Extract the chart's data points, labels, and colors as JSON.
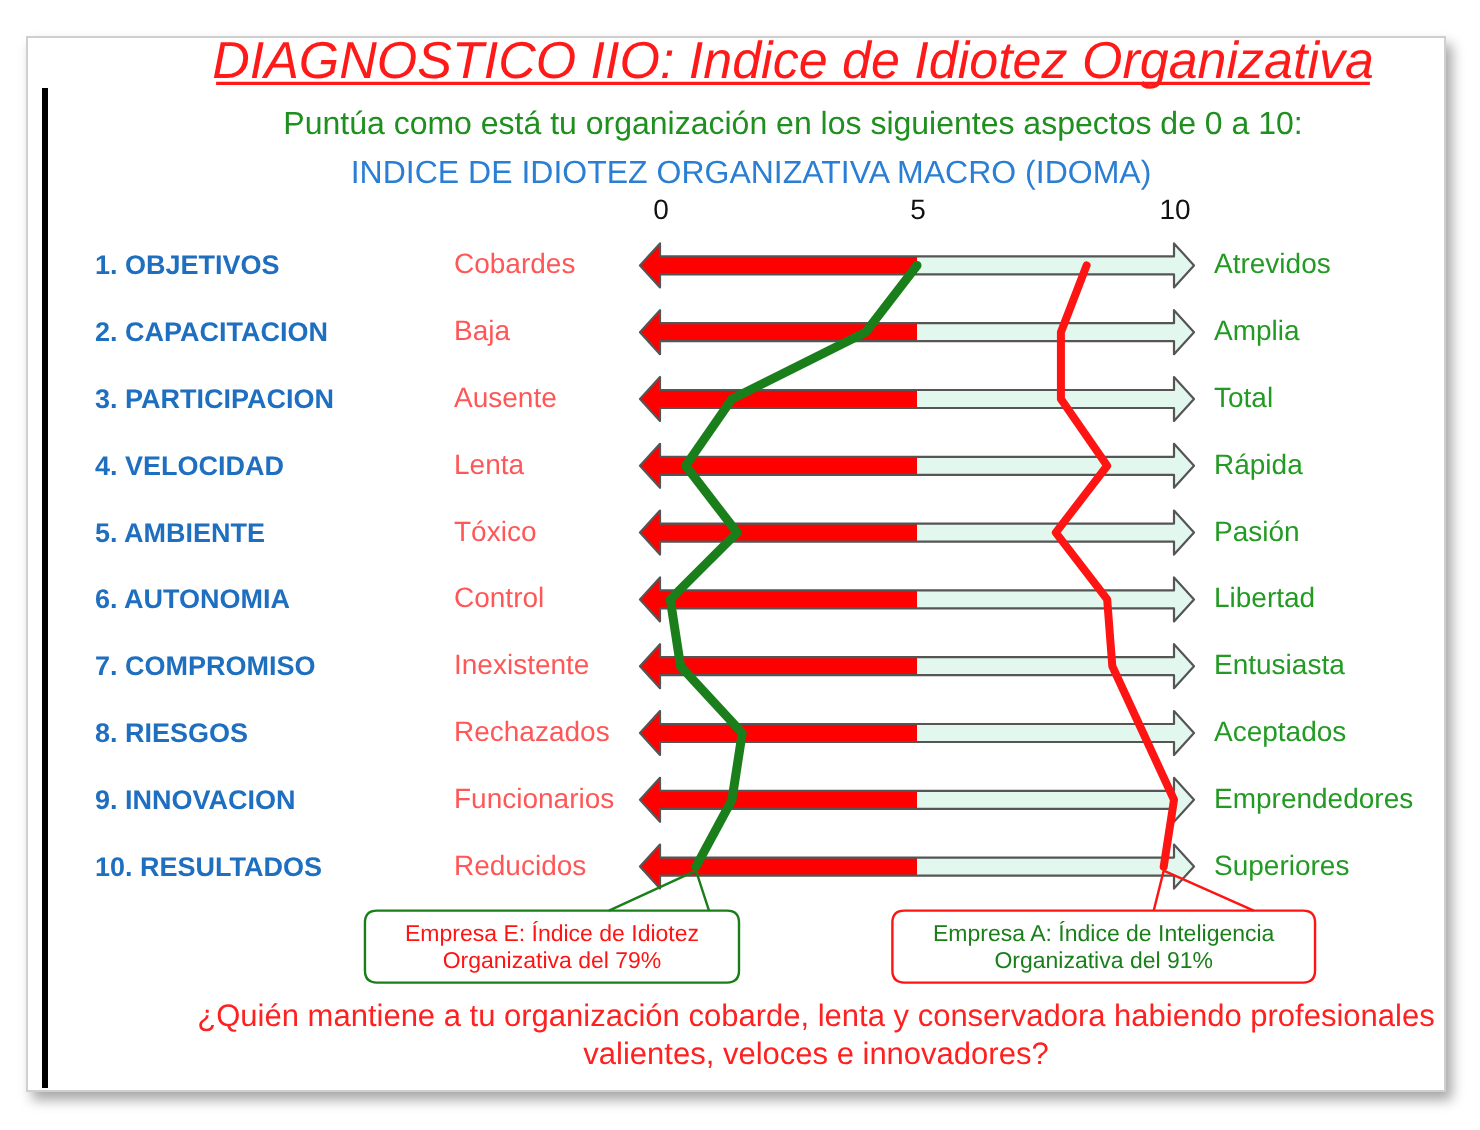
{
  "chart_data": {
    "type": "line",
    "orientation": "horizontal",
    "title": "DIAGNOSTICO IIO: Indice de Idiotez Organizativa",
    "subtitle": "Puntúa como está tu organización en los siguientes aspectos de 0 a 10:",
    "x2label": "INDICE DE IDIOTEZ ORGANIZATIVA MACRO (IDOMA)",
    "categories": [
      "1. OBJETIVOS",
      "2. CAPACITACION",
      "3. PARTICIPACION",
      "4. VELOCIDAD",
      "5. AMBIENTE",
      "6. AUTONOMIA",
      "7. COMPROMISO",
      "8. RIESGOS",
      "9. INNOVACION",
      "10. RESULTADOS"
    ],
    "y2_categories": [
      "Atrevidos",
      "Amplia",
      "Total",
      "Rápida",
      "Pasión",
      "Libertad",
      "Entusiasta",
      "Aceptados",
      "Emprendedores",
      "Superiores"
    ],
    "series": [
      {
        "color": "#1a7f1a",
        "axis": "x2",
        "values": [
          5,
          4,
          1.4,
          0.5,
          1.5,
          0.2,
          0.4,
          1.6,
          1.4,
          0.7
        ]
      },
      {
        "color": "#ff1414",
        "axis": "x2",
        "values": [
          8.3,
          7.8,
          7.8,
          8.7,
          7.7,
          8.7,
          8.8,
          9.4,
          10,
          9.8
        ]
      }
    ],
    "x2lim": [
      0,
      10
    ],
    "x2ticks": [
      0,
      5,
      10
    ],
    "annotations": [
      "Cobardes",
      "Baja",
      "Ausente",
      "Lenta",
      "Tóxico",
      "Control",
      "Inexistente",
      "Rechazados",
      "Funcionarios",
      "Reducidos",
      {
        "text": "Empresa E: Índice de Idiotez Organizativa del 79%",
        "x": 0.7,
        "y": "10. RESULTADOS"
      },
      {
        "text": "Empresa A: Índice de Inteligencia Organizativa del 91%",
        "x": 9.8,
        "y": "10. RESULTADOS"
      },
      "¿Quién mantiene a tu organización cobarde, lenta y conservadora habiendo profesionales valientes, veloces e innovadores?"
    ]
  }
}
